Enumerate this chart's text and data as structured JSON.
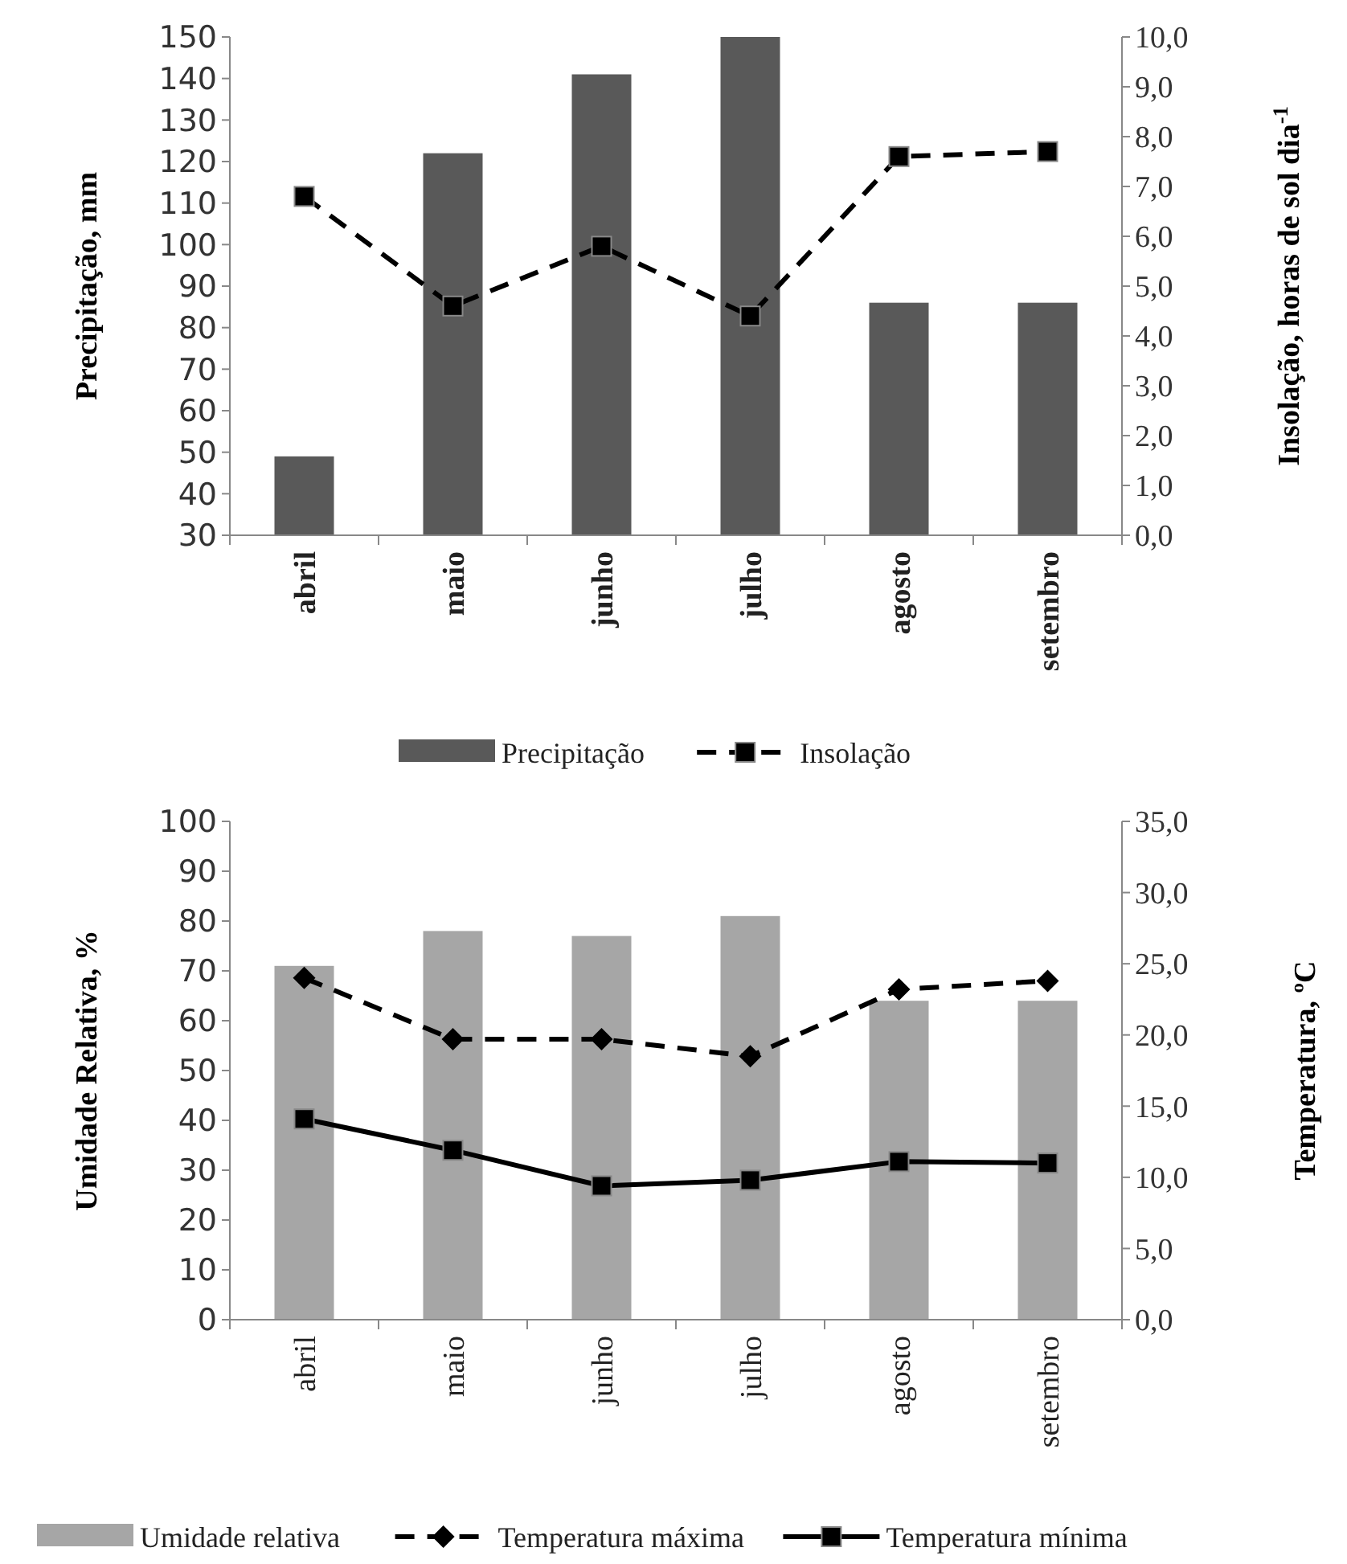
{
  "chart_data": [
    {
      "type": "bar",
      "categories": [
        "abril",
        "maio",
        "junho",
        "julho",
        "agosto",
        "setembro"
      ],
      "ylabel": "Precipitação, mm",
      "y2label": "Insolação,  horas de sol dia$^{-1}$",
      "ylim": [
        30,
        150
      ],
      "yticks": [
        30,
        40,
        50,
        60,
        70,
        80,
        90,
        100,
        110,
        120,
        130,
        140,
        150
      ],
      "y2lim": [
        0,
        10
      ],
      "y2ticks": [
        {
          "value": 0,
          "label": "0,0"
        },
        {
          "value": 1,
          "label": "1,0"
        },
        {
          "value": 2,
          "label": "2,0"
        },
        {
          "value": 3,
          "label": "3,0"
        },
        {
          "value": 4,
          "label": "4,0"
        },
        {
          "value": 5,
          "label": "5,0"
        },
        {
          "value": 6,
          "label": "6,0"
        },
        {
          "value": 7,
          "label": "7,0"
        },
        {
          "value": 8,
          "label": "8,0"
        },
        {
          "value": 9,
          "label": "9,0"
        },
        {
          "value": 10,
          "label": "10,0"
        }
      ],
      "legend": "bottom",
      "series": [
        {
          "name": "Precipitação",
          "color": "#595959",
          "values": [
            49,
            122,
            141,
            150,
            86,
            86
          ]
        },
        {
          "name": "Insolação",
          "type": "line",
          "axis": "y2",
          "color": "#000000",
          "marker": "square",
          "line_style": "dashed",
          "values": [
            6.8,
            4.6,
            5.8,
            4.4,
            7.6,
            7.7
          ]
        }
      ]
    },
    {
      "type": "bar",
      "categories": [
        "abril",
        "maio",
        "junho",
        "julho",
        "agosto",
        "setembro"
      ],
      "ylabel": "Umidade Relativa, %",
      "y2label": "Temperatura, ºC",
      "ylim": [
        0,
        100
      ],
      "yticks": [
        0,
        10,
        20,
        30,
        40,
        50,
        60,
        70,
        80,
        90,
        100
      ],
      "y2lim": [
        0,
        35
      ],
      "y2ticks": [
        {
          "value": 0,
          "label": "0,0"
        },
        {
          "value": 5,
          "label": "5,0"
        },
        {
          "value": 10,
          "label": "10,0"
        },
        {
          "value": 15,
          "label": "15,0"
        },
        {
          "value": 20,
          "label": "20,0"
        },
        {
          "value": 25,
          "label": "25,0"
        },
        {
          "value": 30,
          "label": "30,0"
        },
        {
          "value": 35,
          "label": "35,0"
        }
      ],
      "legend": "bottom",
      "series": [
        {
          "name": "Umidade relativa",
          "color": "#a6a6a6",
          "values": [
            71,
            78,
            77,
            81,
            64,
            64
          ]
        },
        {
          "name": "Temperatura máxima",
          "type": "line",
          "axis": "y2",
          "color": "#000000",
          "marker": "diamond",
          "line_style": "dashed",
          "values": [
            24.0,
            19.7,
            19.7,
            18.5,
            23.2,
            23.8
          ]
        },
        {
          "name": "Temperatura mínima",
          "type": "line",
          "axis": "y2",
          "color": "#000000",
          "marker": "square",
          "line_style": "solid",
          "values": [
            14.1,
            11.9,
            9.4,
            9.8,
            11.1,
            11.0
          ]
        }
      ]
    }
  ]
}
